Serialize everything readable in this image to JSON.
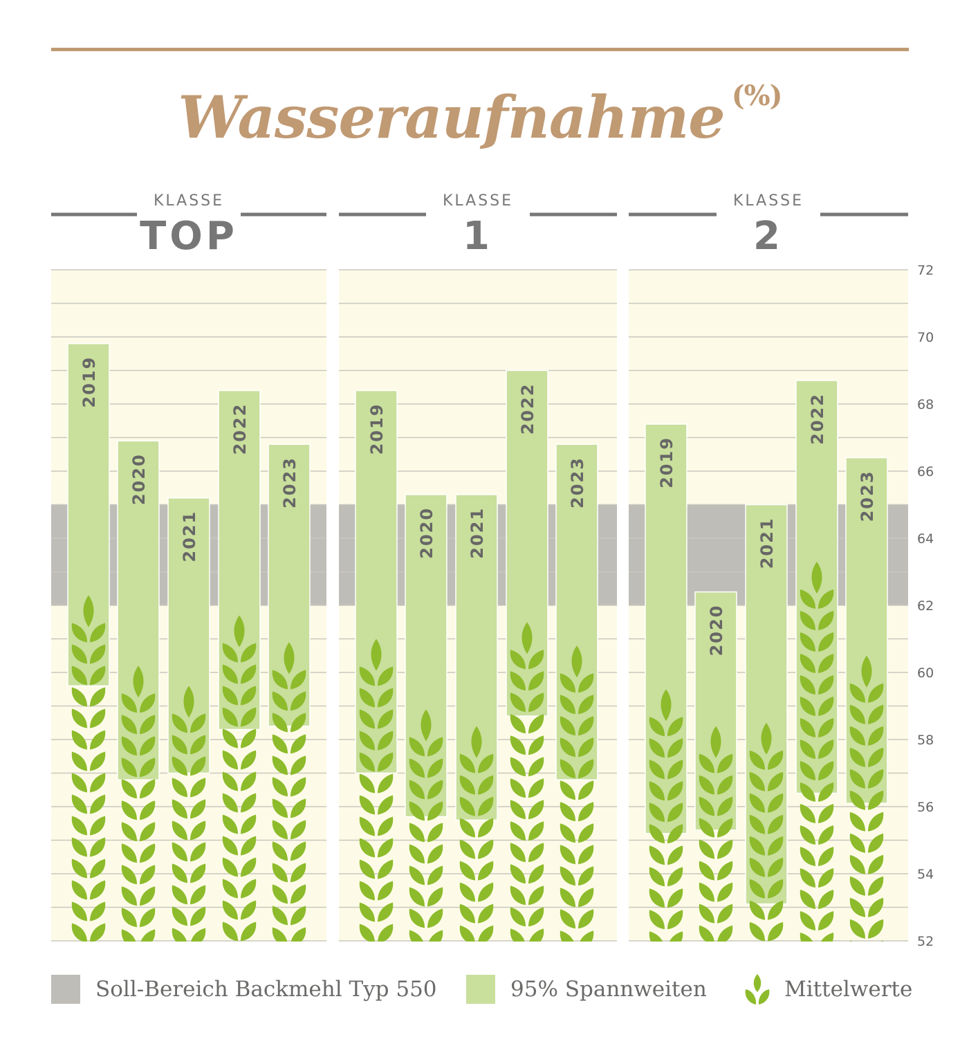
{
  "title": "Wasseraufnahme",
  "unit": "(%)",
  "colors": {
    "accent": "#c09a73",
    "panel_bg": "#fdfbe7",
    "gray_band": "#bfbdb7",
    "range_bar": "#c9df9c",
    "wheat": "#8dbb2b",
    "rule": "#777777",
    "axis_text": "#666666",
    "bar_text": "#666666"
  },
  "panels": [
    {
      "label_top": "KLASSE",
      "label_main": "TOP"
    },
    {
      "label_top": "KLASSE",
      "label_main": "1"
    },
    {
      "label_top": "KLASSE",
      "label_main": "2"
    }
  ],
  "legend": {
    "gray": "Soll-Bereich Backmehl Typ 550",
    "green": "95% Spannweiten",
    "wheat": "Mittelwerte"
  },
  "chart_data": {
    "type": "bar",
    "subtype": "floating range bars with mean markers",
    "title": "Wasseraufnahme",
    "unit": "(%)",
    "ylim": [
      52,
      72
    ],
    "yticks": [
      52,
      54,
      56,
      58,
      60,
      62,
      64,
      66,
      68,
      70,
      72
    ],
    "gridlines": true,
    "target_band": {
      "name": "Soll-Bereich Backmehl Typ 550",
      "range": [
        62,
        65
      ]
    },
    "groups": [
      {
        "name": "KLASSE TOP",
        "categories": [
          "2019",
          "2020",
          "2021",
          "2022",
          "2023"
        ],
        "range_low": [
          59.6,
          56.8,
          57.0,
          58.3,
          58.4
        ],
        "range_high": [
          69.8,
          66.9,
          65.2,
          68.4,
          66.8
        ],
        "mean": [
          62.3,
          60.2,
          59.6,
          61.7,
          60.9
        ]
      },
      {
        "name": "KLASSE 1",
        "categories": [
          "2019",
          "2020",
          "2021",
          "2022",
          "2023"
        ],
        "range_low": [
          57.0,
          55.7,
          55.6,
          58.7,
          56.8
        ],
        "range_high": [
          68.4,
          65.3,
          65.3,
          69.0,
          66.8
        ],
        "mean": [
          61.0,
          58.9,
          58.4,
          61.5,
          60.8
        ]
      },
      {
        "name": "KLASSE 2",
        "categories": [
          "2019",
          "2020",
          "2021",
          "2022",
          "2023"
        ],
        "range_low": [
          55.2,
          55.3,
          53.1,
          56.4,
          56.1
        ],
        "range_high": [
          67.4,
          62.4,
          65.0,
          68.7,
          66.4
        ],
        "mean": [
          59.5,
          58.4,
          58.5,
          63.3,
          60.5
        ]
      }
    ],
    "legend": [
      "Soll-Bereich Backmehl Typ 550",
      "95% Spannweiten",
      "Mittelwerte"
    ]
  }
}
